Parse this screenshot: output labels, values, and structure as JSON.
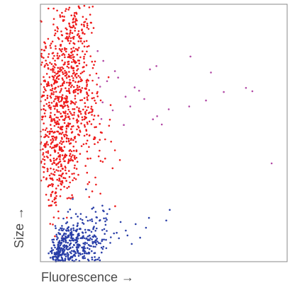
{
  "chart_data": {
    "type": "scatter",
    "title": "",
    "xlabel": "Fluorescence →",
    "ylabel": "Size →",
    "xlim": [
      0,
      100
    ],
    "ylim": [
      0,
      100
    ],
    "ticks": false,
    "grid": false,
    "legend": "none",
    "series": [
      {
        "color": "#ee1c1c",
        "points": [
          [
            15.5,
            99.2
          ],
          [
            17.8,
            99.4
          ],
          [
            19.8,
            98.8
          ],
          [
            21.2,
            99.1
          ],
          [
            17.2,
            95.1
          ],
          [
            18.6,
            94.2
          ],
          [
            20.6,
            92.8
          ],
          [
            19.5,
            90.4
          ],
          [
            17.9,
            88.5
          ],
          [
            16.4,
            85.7
          ],
          [
            15.6,
            83.1
          ],
          [
            14.9,
            80.4
          ],
          [
            14.0,
            77.6
          ],
          [
            13.5,
            75.2
          ],
          [
            12.8,
            72.1
          ],
          [
            11.9,
            69.1
          ],
          [
            11.3,
            66.3
          ],
          [
            10.7,
            63.4
          ],
          [
            10.1,
            60.6
          ],
          [
            9.6,
            57.8
          ],
          [
            9.2,
            55.1
          ],
          [
            8.8,
            52.3
          ],
          [
            8.5,
            49.6
          ],
          [
            8.3,
            46.8
          ],
          [
            8.1,
            44.1
          ],
          [
            7.9,
            41.4
          ],
          [
            7.6,
            38.6
          ],
          [
            7.2,
            35.3
          ],
          [
            6.8,
            31.8
          ],
          [
            6.4,
            28.4
          ],
          [
            5.9,
            24.8
          ],
          [
            4.5,
            21.9
          ],
          [
            21.0,
            65.5
          ],
          [
            23.2,
            64.2
          ],
          [
            22.5,
            61.6
          ],
          [
            20.8,
            58.1
          ],
          [
            22.6,
            52.3
          ],
          [
            21.6,
            47.6
          ],
          [
            18.9,
            42.8
          ],
          [
            20.3,
            40.1
          ],
          [
            18.3,
            37.2
          ]
        ],
        "density": [
          [
            6.5,
            44,
            10.5,
            4.5,
            0.0,
            260
          ],
          [
            8.6,
            61,
            14.5,
            6.0,
            -0.3,
            420
          ],
          [
            11.2,
            74,
            11.5,
            5.0,
            -0.3,
            170
          ],
          [
            14.0,
            84,
            11.0,
            3.5,
            -0.3,
            120
          ],
          [
            15.5,
            94,
            6.0,
            2.0,
            -0.4,
            40
          ],
          [
            5.0,
            30,
            10.0,
            2.5,
            0.0,
            45
          ]
        ]
      },
      {
        "color": "#b24aa6",
        "points": [
          [
            27.0,
            70.1
          ],
          [
            31.5,
            71.5
          ],
          [
            40.0,
            66.4
          ],
          [
            44.4,
            74.7
          ],
          [
            47.0,
            76.0
          ],
          [
            42.1,
            63.2
          ],
          [
            60.8,
            79.7
          ],
          [
            69.1,
            73.5
          ],
          [
            74.3,
            65.9
          ],
          [
            67.1,
            62.6
          ],
          [
            83.3,
            67.5
          ],
          [
            85.9,
            66.2
          ],
          [
            60.3,
            60.3
          ],
          [
            93.7,
            38.2
          ],
          [
            29.3,
            58.8
          ],
          [
            38.2,
            67.7
          ],
          [
            34.5,
            64.1
          ],
          [
            36.4,
            60.3
          ],
          [
            47.3,
            56.5
          ],
          [
            52.0,
            59.2
          ],
          [
            49.2,
            53.3
          ],
          [
            45.6,
            55.3
          ],
          [
            33.8,
            53.1
          ],
          [
            30.2,
            74.0
          ],
          [
            25.2,
            61.9
          ],
          [
            24.7,
            55.4
          ],
          [
            23.6,
            71.4
          ],
          [
            25.5,
            78.0
          ],
          [
            23.2,
            81.8
          ],
          [
            24.2,
            68.0
          ]
        ]
      },
      {
        "color": "#2a3fa8",
        "points": [
          [
            38.6,
            14.6
          ],
          [
            34.6,
            12.1
          ],
          [
            42.8,
            13.2
          ],
          [
            51.0,
            16.0
          ],
          [
            52.4,
            20.1
          ],
          [
            44.0,
            17.0
          ],
          [
            35.3,
            10.2
          ],
          [
            31.8,
            9.1
          ],
          [
            24.9,
            8.0
          ],
          [
            28.3,
            7.3
          ],
          [
            20.7,
            11.6
          ],
          [
            15.7,
            10.2
          ],
          [
            22.8,
            12.9
          ],
          [
            29.8,
            11.0
          ],
          [
            26.4,
            14.3
          ],
          [
            32.5,
            15.4
          ],
          [
            40.4,
            9.3
          ],
          [
            37.0,
            6.9
          ],
          [
            4.8,
            8.5
          ],
          [
            6.2,
            13.0
          ]
        ],
        "density": [
          [
            7.2,
            3.0,
            6.0,
            1.6,
            0.25,
            260
          ],
          [
            12.5,
            4.8,
            6.5,
            2.1,
            0.25,
            170
          ],
          [
            18.5,
            6.4,
            6.5,
            2.0,
            0.25,
            95
          ],
          [
            24.0,
            8.8,
            6.0,
            2.5,
            0.2,
            60
          ]
        ]
      }
    ]
  }
}
